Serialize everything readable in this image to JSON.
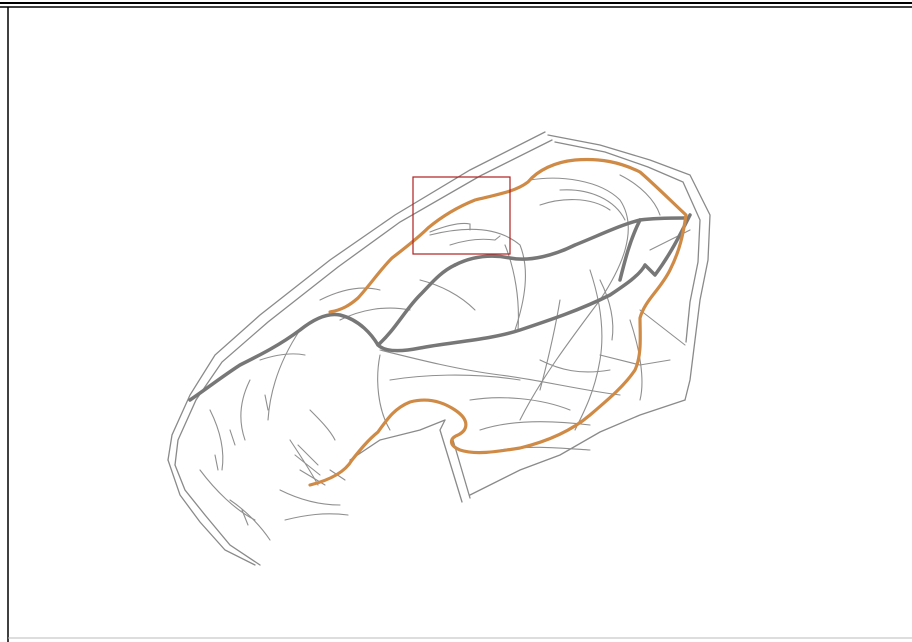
{
  "map": {
    "background_color": "#ffffff",
    "frame_color": "#000000",
    "path_color": "#8a8a8a",
    "main_trail_color": "#777777",
    "highlight_route_color": "#cf8a46",
    "selection_box_color": "#b02020"
  },
  "icons": {
    "selection_box": "selection-box-icon"
  }
}
